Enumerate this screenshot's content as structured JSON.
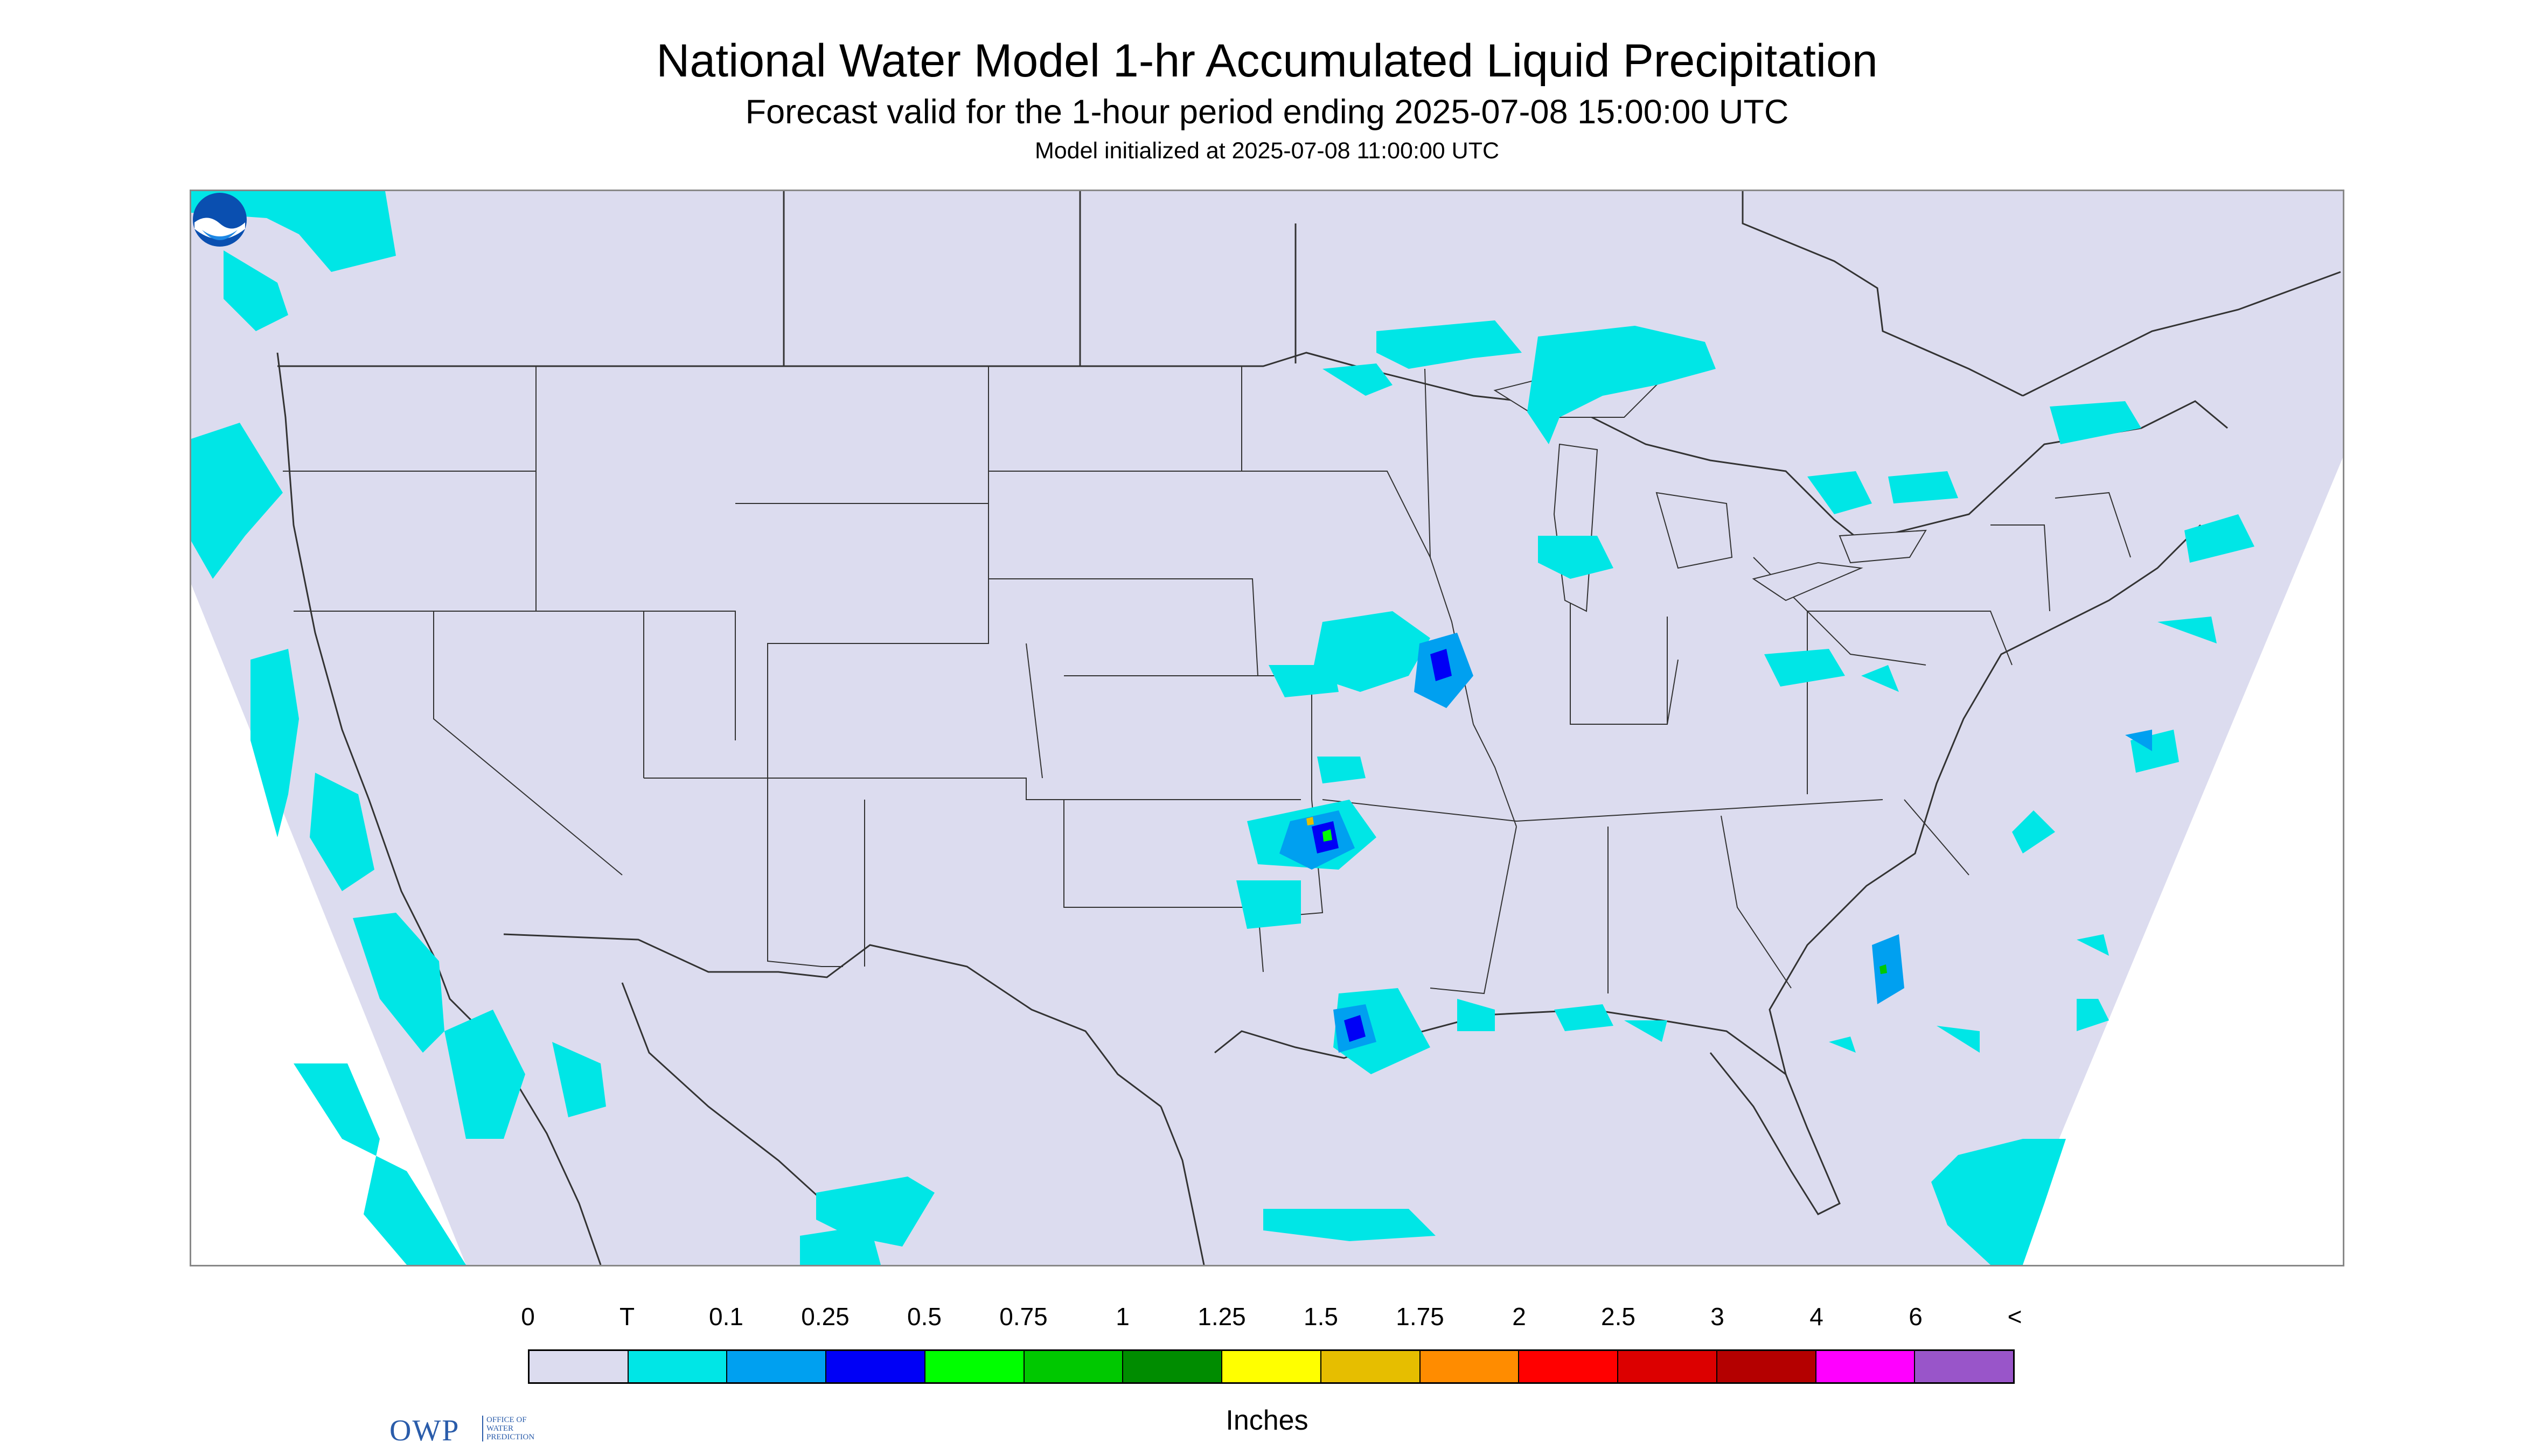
{
  "title": {
    "main": "National Water Model 1-hr Accumulated Liquid Precipitation",
    "forecast": "Forecast valid for the 1-hour period ending 2025-07-08 15:00:00 UTC",
    "init": "Model initialized at 2025-07-08 11:00:00 UTC"
  },
  "logos": {
    "owp_mark": "OWP",
    "owp_text": "OFFICE OF WATER PREDICTION",
    "noaa_text": "NOAA"
  },
  "legend": {
    "tick_labels": [
      "0",
      "T",
      "0.1",
      "0.25",
      "0.5",
      "0.75",
      "1",
      "1.25",
      "1.5",
      "1.75",
      "2",
      "2.5",
      "3",
      "4",
      "6",
      "<"
    ],
    "colors": [
      "#dcdcef",
      "#00e6e6",
      "#00a0f0",
      "#0000f6",
      "#00ff00",
      "#00c800",
      "#008c00",
      "#ffff00",
      "#e6be00",
      "#ff8c00",
      "#ff0000",
      "#dc0000",
      "#b40000",
      "#ff00ff",
      "#9955c9"
    ],
    "units": "Inches"
  },
  "map": {
    "background_color": "#dcdcef",
    "outside_color": "#ffffff",
    "line_color": "#333333",
    "precip_regions": [
      {
        "region": "Pacific offshore / Pacific Northwest",
        "category": "T"
      },
      {
        "region": "Western Great Lakes / Lake Superior",
        "category": "T"
      },
      {
        "region": "Iowa / Illinois",
        "category": "0.25"
      },
      {
        "region": "Eastern Oklahoma / Arkansas",
        "category": "0.5"
      },
      {
        "region": "Southern Louisiana coast",
        "category": "0.5"
      },
      {
        "region": "Atlantic offshore / Carolinas",
        "category": "0.25"
      },
      {
        "region": "Northeast",
        "category": "T"
      },
      {
        "region": "Mexico / Gulf of Mexico",
        "category": "T"
      }
    ]
  }
}
